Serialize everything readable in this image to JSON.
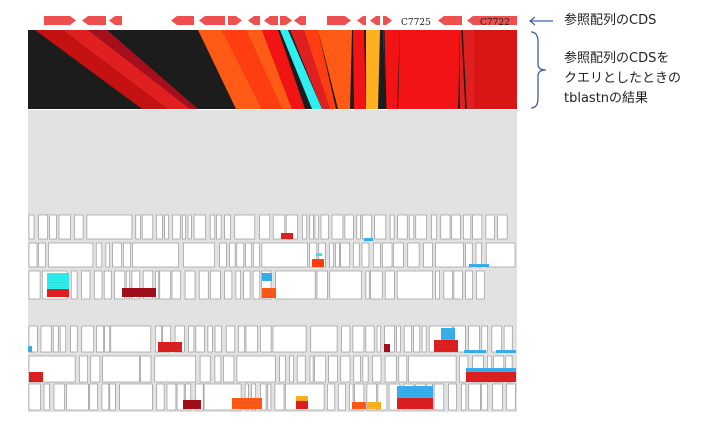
{
  "reference_cds_labels": [
    "C7725",
    "C7722"
  ],
  "annotations": {
    "reference_cds": "参照配列のCDS",
    "tblastn_lines": [
      "参照配列のCDSを",
      "クエリとしたときの",
      "tblastnの結果"
    ]
  },
  "colors": {
    "arrow": "#ee5050",
    "track_background": "#1c1c1c",
    "lower_background": "#e2e2e2",
    "hit_colors": [
      "#f21414",
      "#e02020",
      "#c41212",
      "#a30f1a",
      "#ff5a16",
      "#ff3d10",
      "#ffb020",
      "#2ff0f0",
      "#39b0f0"
    ]
  }
}
